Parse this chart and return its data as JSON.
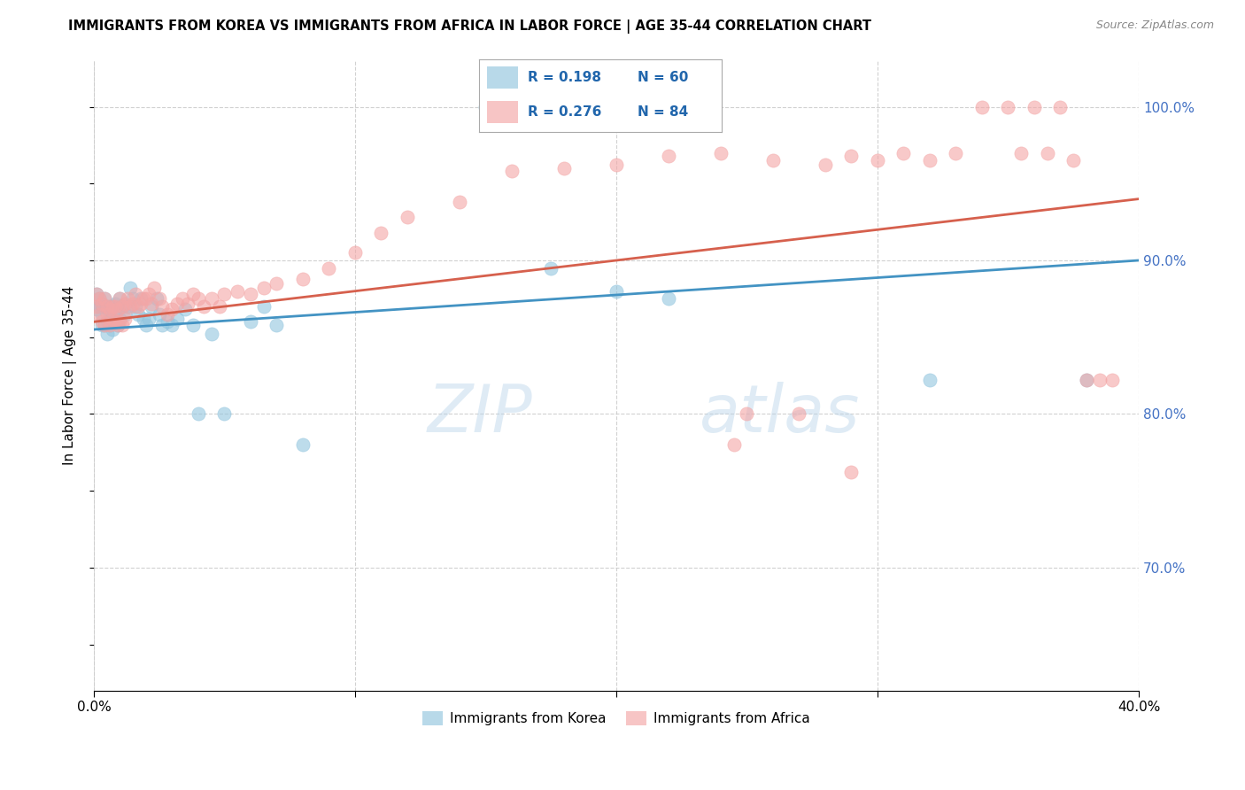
{
  "title": "IMMIGRANTS FROM KOREA VS IMMIGRANTS FROM AFRICA IN LABOR FORCE | AGE 35-44 CORRELATION CHART",
  "source": "Source: ZipAtlas.com",
  "ylabel": "In Labor Force | Age 35-44",
  "x_min": 0.0,
  "x_max": 0.4,
  "y_min": 0.62,
  "y_max": 1.03,
  "korea_R": 0.198,
  "korea_N": 60,
  "africa_R": 0.276,
  "africa_N": 84,
  "korea_color": "#92c5de",
  "africa_color": "#f4a6a6",
  "trendline_korea_color": "#4393c3",
  "trendline_africa_color": "#d6604d",
  "watermark": "ZIPatlas",
  "yticks": [
    0.7,
    0.8,
    0.9,
    1.0
  ],
  "ytick_labels": [
    "70.0%",
    "80.0%",
    "90.0%",
    "100.0%"
  ],
  "korea_scatter_x": [
    0.001,
    0.001,
    0.002,
    0.002,
    0.003,
    0.003,
    0.003,
    0.003,
    0.004,
    0.004,
    0.004,
    0.005,
    0.005,
    0.005,
    0.006,
    0.006,
    0.006,
    0.007,
    0.007,
    0.007,
    0.008,
    0.008,
    0.009,
    0.009,
    0.01,
    0.01,
    0.011,
    0.012,
    0.013,
    0.014,
    0.015,
    0.016,
    0.017,
    0.018,
    0.019,
    0.02,
    0.021,
    0.022,
    0.024,
    0.025,
    0.026,
    0.028,
    0.03,
    0.032,
    0.035,
    0.038,
    0.04,
    0.045,
    0.05,
    0.06,
    0.065,
    0.07,
    0.08,
    0.15,
    0.16,
    0.175,
    0.2,
    0.22,
    0.32,
    0.38
  ],
  "korea_scatter_y": [
    0.868,
    0.878,
    0.87,
    0.875,
    0.858,
    0.865,
    0.87,
    0.872,
    0.858,
    0.87,
    0.875,
    0.852,
    0.86,
    0.868,
    0.858,
    0.862,
    0.87,
    0.855,
    0.862,
    0.87,
    0.86,
    0.872,
    0.858,
    0.868,
    0.862,
    0.875,
    0.87,
    0.865,
    0.87,
    0.882,
    0.875,
    0.87,
    0.865,
    0.875,
    0.862,
    0.858,
    0.862,
    0.87,
    0.875,
    0.865,
    0.858,
    0.86,
    0.858,
    0.862,
    0.868,
    0.858,
    0.8,
    0.852,
    0.8,
    0.86,
    0.87,
    0.858,
    0.78,
    1.0,
    1.0,
    0.895,
    0.88,
    0.875,
    0.822,
    0.822
  ],
  "africa_scatter_x": [
    0.001,
    0.001,
    0.002,
    0.002,
    0.003,
    0.003,
    0.004,
    0.004,
    0.005,
    0.005,
    0.006,
    0.006,
    0.007,
    0.007,
    0.008,
    0.008,
    0.009,
    0.009,
    0.01,
    0.01,
    0.011,
    0.011,
    0.012,
    0.012,
    0.013,
    0.014,
    0.015,
    0.016,
    0.017,
    0.018,
    0.019,
    0.02,
    0.021,
    0.022,
    0.023,
    0.025,
    0.026,
    0.028,
    0.03,
    0.032,
    0.034,
    0.036,
    0.038,
    0.04,
    0.042,
    0.045,
    0.048,
    0.05,
    0.055,
    0.06,
    0.065,
    0.07,
    0.08,
    0.09,
    0.1,
    0.11,
    0.12,
    0.14,
    0.16,
    0.18,
    0.2,
    0.22,
    0.24,
    0.26,
    0.28,
    0.29,
    0.3,
    0.31,
    0.32,
    0.33,
    0.34,
    0.35,
    0.355,
    0.36,
    0.365,
    0.37,
    0.375,
    0.38,
    0.385,
    0.39,
    0.25,
    0.27,
    0.29,
    0.245
  ],
  "africa_scatter_y": [
    0.87,
    0.878,
    0.865,
    0.875,
    0.86,
    0.872,
    0.858,
    0.875,
    0.865,
    0.87,
    0.858,
    0.868,
    0.862,
    0.87,
    0.86,
    0.87,
    0.858,
    0.868,
    0.86,
    0.875,
    0.858,
    0.87,
    0.862,
    0.872,
    0.875,
    0.87,
    0.872,
    0.878,
    0.87,
    0.872,
    0.875,
    0.875,
    0.878,
    0.872,
    0.882,
    0.875,
    0.87,
    0.865,
    0.868,
    0.872,
    0.875,
    0.872,
    0.878,
    0.875,
    0.87,
    0.875,
    0.87,
    0.878,
    0.88,
    0.878,
    0.882,
    0.885,
    0.888,
    0.895,
    0.905,
    0.918,
    0.928,
    0.938,
    0.958,
    0.96,
    0.962,
    0.968,
    0.97,
    0.965,
    0.962,
    0.968,
    0.965,
    0.97,
    0.965,
    0.97,
    1.0,
    1.0,
    0.97,
    1.0,
    0.97,
    1.0,
    0.965,
    0.822,
    0.822,
    0.822,
    0.8,
    0.8,
    0.762,
    0.78
  ],
  "trendline_korea_x0": 0.0,
  "trendline_korea_y0": 0.855,
  "trendline_korea_x1": 0.4,
  "trendline_korea_y1": 0.9,
  "trendline_africa_x0": 0.0,
  "trendline_africa_y0": 0.86,
  "trendline_africa_x1": 0.4,
  "trendline_africa_y1": 0.94
}
